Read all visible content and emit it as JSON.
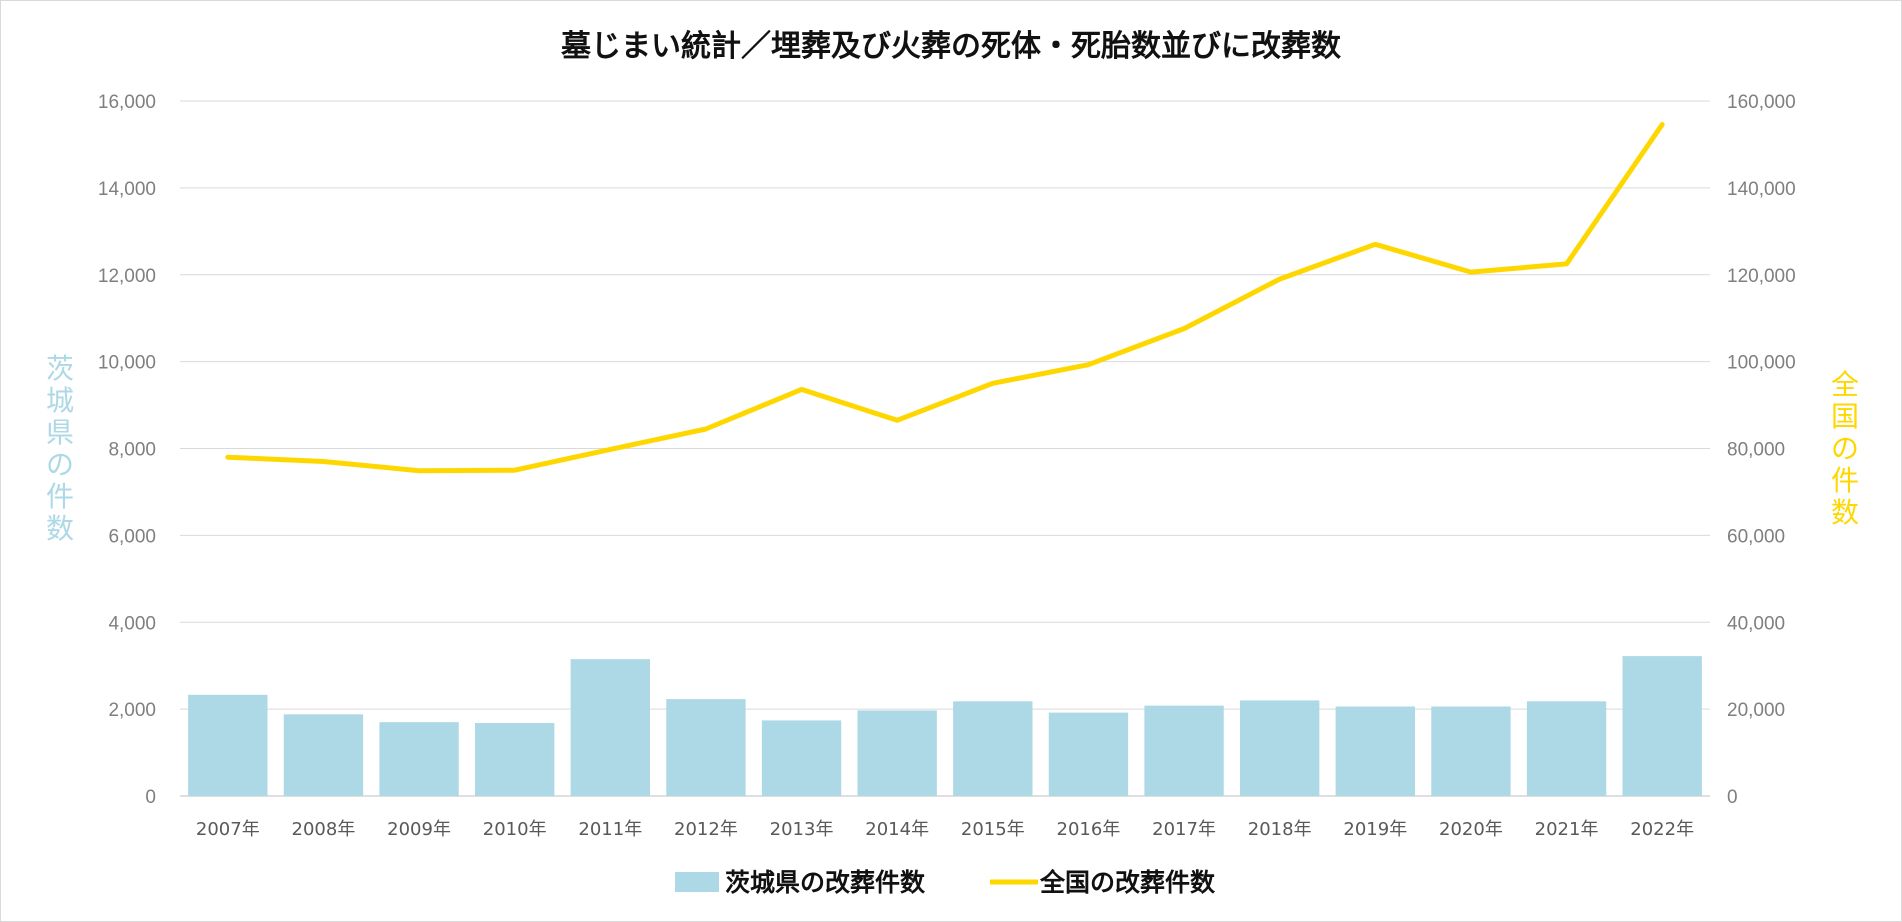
{
  "chart_data": {
    "type": "bar+line",
    "title": "墓じまい統計／埋葬及び火葬の死体・死胎数並びに改葬数",
    "categories": [
      "2007年",
      "2008年",
      "2009年",
      "2010年",
      "2011年",
      "2012年",
      "2013年",
      "2014年",
      "2015年",
      "2016年",
      "2017年",
      "2018年",
      "2019年",
      "2020年",
      "2021年",
      "2022年"
    ],
    "series": [
      {
        "name": "茨城県の改葬件数",
        "type": "bar",
        "axis": "left",
        "color": "#add8e6",
        "values": [
          2330,
          1880,
          1700,
          1680,
          3150,
          2230,
          1740,
          1970,
          2180,
          1920,
          2080,
          2200,
          2060,
          2060,
          2180,
          3220
        ]
      },
      {
        "name": "全国の改葬件数",
        "type": "line",
        "axis": "right",
        "color": "#ffd700",
        "values": [
          78000,
          77000,
          74900,
          75000,
          79800,
          84500,
          93600,
          86500,
          95000,
          99300,
          107600,
          119000,
          127000,
          120600,
          122500,
          154600
        ]
      }
    ],
    "ylabel_left": "茨城県の件数",
    "ylabel_right": "全国の件数",
    "ylim_left": [
      0,
      16000
    ],
    "ylim_right": [
      0,
      160000
    ],
    "yticks_left": [
      "0",
      "2,000",
      "4,000",
      "6,000",
      "8,000",
      "10,000",
      "12,000",
      "14,000",
      "16,000"
    ],
    "yticks_right": [
      "0",
      "20,000",
      "40,000",
      "60,000",
      "80,000",
      "100,000",
      "120,000",
      "140,000",
      "160,000"
    ],
    "grid": true,
    "legend_position": "bottom",
    "colors": {
      "left_axis_title": "#add8e6",
      "right_axis_title": "#ffd700",
      "gridline": "#d9d9d9"
    }
  }
}
